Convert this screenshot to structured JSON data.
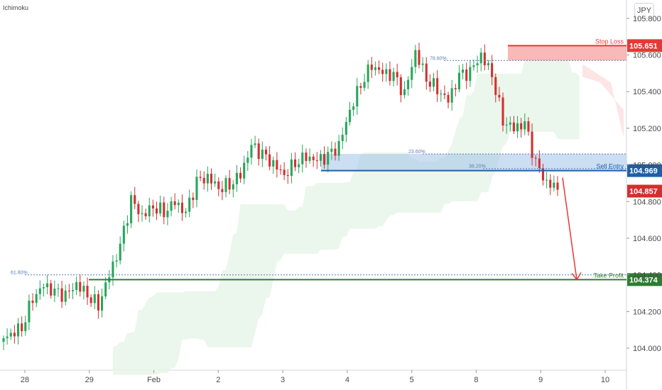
{
  "indicator": "Ichimoku",
  "currency": "JPY",
  "colors": {
    "up": "#26a65b",
    "down": "#d32f2f",
    "stop_zone": "#f7a8a8",
    "entry_zone": "#a9c8ea",
    "cloud_green": "#e8f5e9",
    "cloud_red": "#fde2e2",
    "stop_line": "#e53935",
    "entry_line": "#1e5fa8",
    "tp_line": "#2e7d32",
    "arrow": "#e53935"
  },
  "chart_data": {
    "type": "candlestick",
    "title": "",
    "xlabel": "",
    "ylabel": "",
    "ylim": [
      103.88,
      105.9
    ],
    "x_ticks": [
      "28",
      "29",
      "Feb",
      "2",
      "3",
      "4",
      "5",
      "8",
      "9",
      "10"
    ],
    "y_ticks": [
      "104.000",
      "104.200",
      "104.400",
      "104.600",
      "104.800",
      "105.000",
      "105.200",
      "105.400",
      "105.600",
      "105.800"
    ],
    "candles_close_approx": [
      104.08,
      104.12,
      104.28,
      104.34,
      104.3,
      104.28,
      104.35,
      104.3,
      104.24,
      104.4,
      104.55,
      104.8,
      104.72,
      104.78,
      104.75,
      104.8,
      104.73,
      104.9,
      104.93,
      104.88,
      104.9,
      104.95,
      105.1,
      105.05,
      105.0,
      104.95,
      105.02,
      105.05,
      105.02,
      105.04,
      105.1,
      105.3,
      105.45,
      105.55,
      105.5,
      105.48,
      105.38,
      105.62,
      105.48,
      105.42,
      105.35,
      105.48,
      105.5,
      105.6,
      105.5,
      105.25,
      105.2,
      105.22,
      105.0,
      104.9,
      104.88
    ],
    "levels": [
      {
        "label": "Stop Loss",
        "value": "105.651"
      },
      {
        "label": "Sell Entry",
        "value": "104.969"
      },
      {
        "label": "Take Profit",
        "value": "104.374"
      }
    ],
    "current_price": "104.857",
    "fib_levels": [
      {
        "label": "78.60%",
        "value": 105.57
      },
      {
        "label": "23.60%",
        "value": 105.06
      },
      {
        "label": "38.20%",
        "value": 104.98
      },
      {
        "label": "61.80%",
        "value": 104.4
      }
    ]
  }
}
